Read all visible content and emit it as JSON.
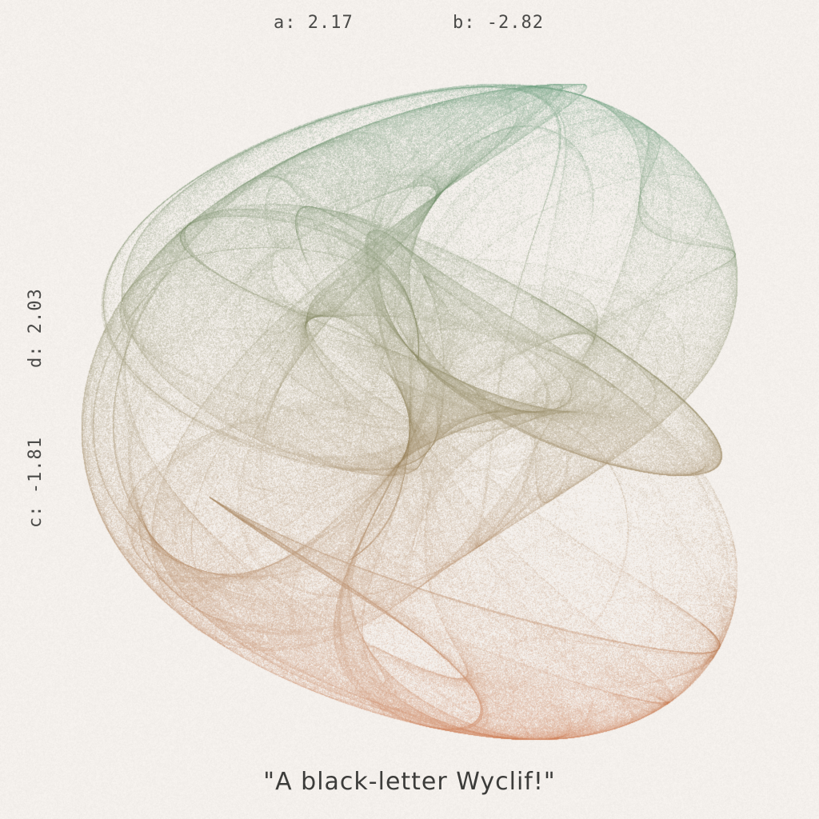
{
  "params": {
    "a": {
      "label": "a:",
      "value": "2.17"
    },
    "b": {
      "label": "b:",
      "value": "-2.82"
    },
    "c": {
      "label": "c:",
      "value": "-1.81"
    },
    "d": {
      "label": "d:",
      "value": "2.03"
    }
  },
  "caption": "\"A black-letter Wyclif!\"",
  "colors": {
    "background": "#f4f0ec",
    "green": "#3f7a4e",
    "teal": "#4fa583",
    "orange": "#c8693a",
    "text": "#4a4a48"
  }
}
